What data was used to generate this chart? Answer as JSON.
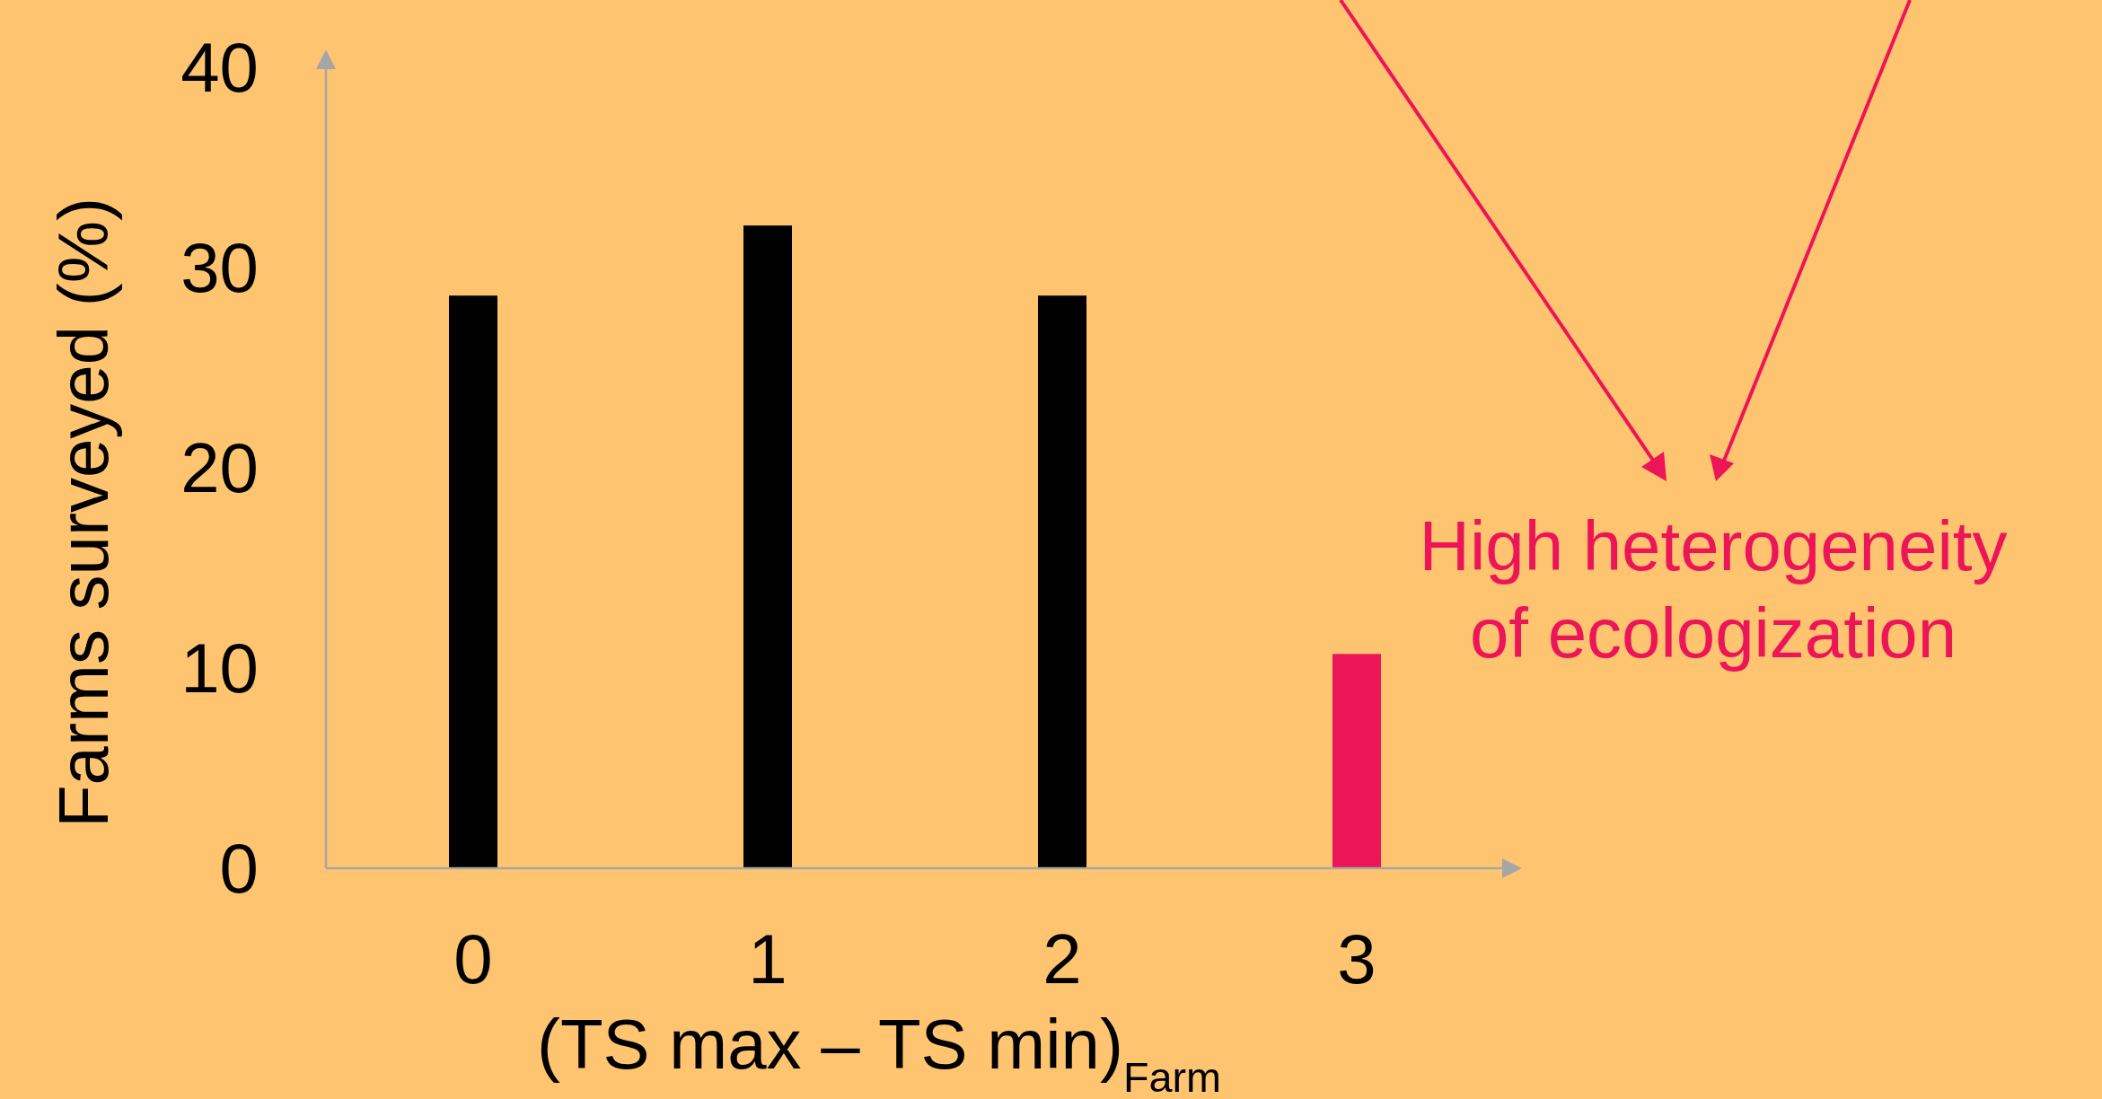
{
  "chart_data": {
    "type": "bar",
    "xlabel": "(TS max – TS min)$_{Farm}$",
    "ylabel": "Farms surveyed (%)",
    "categories": [
      "0",
      "1",
      "2",
      "3"
    ],
    "values": [
      28.6,
      32.1,
      28.6,
      10.7
    ],
    "colors": [
      "#000000",
      "#000000",
      "#000000",
      "#ec1558"
    ],
    "ylim": [
      0,
      40
    ],
    "yticks": [
      0,
      10,
      20,
      30,
      40
    ],
    "annotations": [
      "High heterogeneity of ecologization"
    ]
  }
}
